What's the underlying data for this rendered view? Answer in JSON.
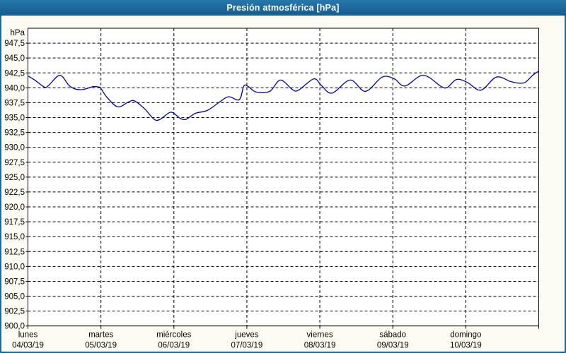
{
  "window": {
    "title": "Presión atmosférica [hPa]",
    "titlebar_color": "#1C689C",
    "border_color": "#1D6A9C",
    "background_color": "#FCFCF4"
  },
  "chart_data": {
    "type": "line",
    "title": "Presión atmosférica [hPa]",
    "ylabel": "hPa",
    "xlabel": "",
    "ylim": [
      900,
      950
    ],
    "xlim": [
      0,
      168
    ],
    "y_tick_step": 2.5,
    "grid": "dashed",
    "legend": "none",
    "line_color": "#0000AA",
    "plot_background": "#FFFFFF",
    "y_ticks": [
      {
        "value": 947.5,
        "label": "947,5"
      },
      {
        "value": 945.0,
        "label": "945,0"
      },
      {
        "value": 942.5,
        "label": "942,5"
      },
      {
        "value": 940.0,
        "label": "940,0"
      },
      {
        "value": 937.5,
        "label": "937,5"
      },
      {
        "value": 935.0,
        "label": "935,0"
      },
      {
        "value": 932.5,
        "label": "932,5"
      },
      {
        "value": 930.0,
        "label": "930,0"
      },
      {
        "value": 927.5,
        "label": "927,5"
      },
      {
        "value": 925.0,
        "label": "925,0"
      },
      {
        "value": 922.5,
        "label": "922,5"
      },
      {
        "value": 920.0,
        "label": "920,0"
      },
      {
        "value": 917.5,
        "label": "917,5"
      },
      {
        "value": 915.0,
        "label": "915,0"
      },
      {
        "value": 912.5,
        "label": "912,5"
      },
      {
        "value": 910.0,
        "label": "910,0"
      },
      {
        "value": 907.5,
        "label": "907,5"
      },
      {
        "value": 905.0,
        "label": "905,0"
      },
      {
        "value": 902.5,
        "label": "902,5"
      },
      {
        "value": 900.0,
        "label": "900,0"
      }
    ],
    "x_ticks": [
      {
        "day": "lunes",
        "date": "04/03/19",
        "hour": 0
      },
      {
        "day": "martes",
        "date": "05/03/19",
        "hour": 24
      },
      {
        "day": "miércoles",
        "date": "06/03/19",
        "hour": 48
      },
      {
        "day": "jueves",
        "date": "07/03/19",
        "hour": 72
      },
      {
        "day": "viernes",
        "date": "08/03/19",
        "hour": 96
      },
      {
        "day": "sábado",
        "date": "09/03/19",
        "hour": 120
      },
      {
        "day": "domingo",
        "date": "10/03/19",
        "hour": 144
      }
    ],
    "series": [
      {
        "name": "Presión atmosférica",
        "x": [
          0,
          2.5,
          5.5,
          7,
          10.5,
          13.5,
          15.5,
          18,
          21.5,
          23.5,
          24,
          26,
          29.5,
          33,
          35,
          38.5,
          41.5,
          43.5,
          47,
          50,
          52,
          55,
          59,
          63,
          66,
          69.5,
          71,
          72.5,
          75,
          79.5,
          83,
          87,
          89,
          94,
          96.5,
          100,
          106,
          111,
          116.5,
          120.5,
          124,
          130,
          136,
          138,
          141,
          144.5,
          149,
          154,
          158.5,
          161,
          163.5,
          166,
          168
        ],
        "values": [
          942.0,
          941.2,
          940.1,
          940.5,
          942.1,
          940.4,
          939.8,
          939.7,
          940.2,
          940.1,
          939.9,
          938.4,
          936.8,
          937.6,
          937.8,
          936.4,
          934.7,
          934.7,
          935.9,
          934.9,
          934.7,
          935.7,
          936.2,
          937.6,
          938.5,
          938.0,
          940.3,
          940.2,
          939.3,
          939.4,
          941.3,
          939.7,
          939.6,
          941.5,
          940.4,
          939.1,
          941.3,
          939.4,
          941.8,
          941.5,
          940.3,
          942.1,
          940.2,
          940.1,
          941.4,
          940.9,
          939.6,
          941.8,
          941.1,
          940.8,
          940.9,
          942.1,
          942.8
        ]
      }
    ]
  }
}
